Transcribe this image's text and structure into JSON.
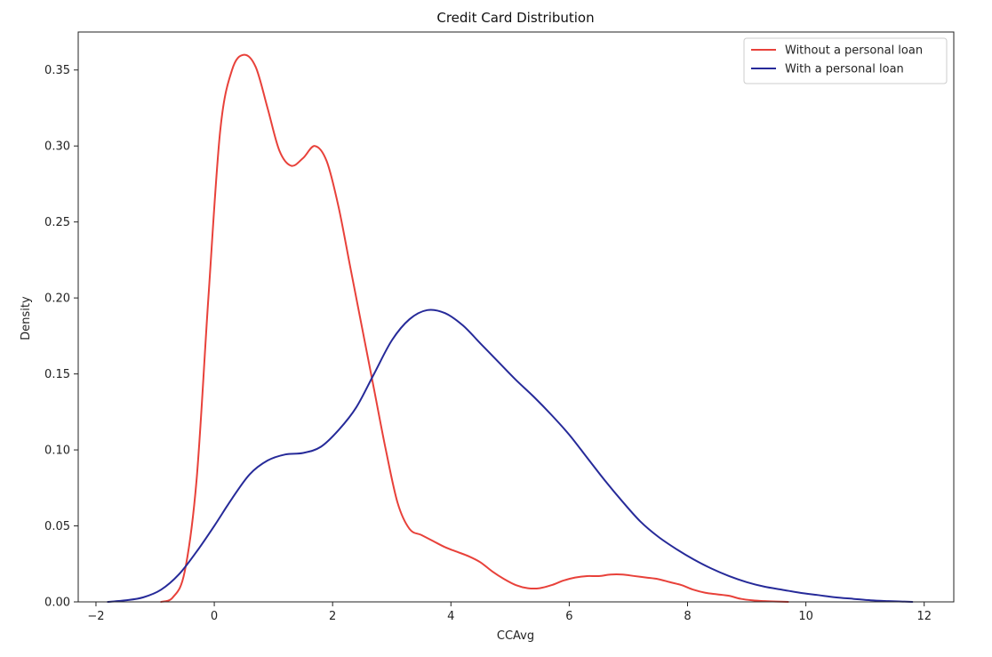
{
  "chart_data": {
    "type": "line",
    "title": "Credit Card Distribution",
    "xlabel": "CCAvg",
    "ylabel": "Density",
    "xlim": [
      -2.3,
      12.5
    ],
    "ylim": [
      0,
      0.375
    ],
    "xticks": [
      -2,
      0,
      2,
      4,
      6,
      8,
      10,
      12
    ],
    "xtick_labels": [
      "−2",
      "0",
      "2",
      "4",
      "6",
      "8",
      "10",
      "12"
    ],
    "yticks": [
      0,
      0.05,
      0.1,
      0.15,
      0.2,
      0.25,
      0.3,
      0.35
    ],
    "ytick_labels": [
      "0.00",
      "0.05",
      "0.10",
      "0.15",
      "0.20",
      "0.25",
      "0.30",
      "0.35"
    ],
    "grid": false,
    "legend_position": "top-right",
    "series": [
      {
        "name": "Without a personal loan",
        "color": "#e8413a",
        "x": [
          -0.9,
          -0.7,
          -0.5,
          -0.3,
          -0.1,
          0.1,
          0.3,
          0.5,
          0.7,
          0.9,
          1.1,
          1.3,
          1.5,
          1.7,
          1.9,
          2.1,
          2.3,
          2.5,
          2.7,
          2.9,
          3.1,
          3.3,
          3.5,
          3.7,
          3.9,
          4.1,
          4.3,
          4.5,
          4.7,
          4.9,
          5.1,
          5.3,
          5.5,
          5.7,
          5.9,
          6.1,
          6.3,
          6.5,
          6.7,
          6.9,
          7.1,
          7.3,
          7.5,
          7.7,
          7.9,
          8.1,
          8.3,
          8.5,
          8.7,
          8.9,
          9.1,
          9.3,
          9.5,
          9.7
        ],
        "y": [
          0.0,
          0.003,
          0.02,
          0.08,
          0.2,
          0.31,
          0.35,
          0.36,
          0.352,
          0.325,
          0.297,
          0.287,
          0.292,
          0.3,
          0.29,
          0.26,
          0.22,
          0.18,
          0.14,
          0.1,
          0.065,
          0.048,
          0.044,
          0.04,
          0.036,
          0.033,
          0.03,
          0.026,
          0.02,
          0.015,
          0.011,
          0.009,
          0.009,
          0.011,
          0.014,
          0.016,
          0.017,
          0.017,
          0.018,
          0.018,
          0.017,
          0.016,
          0.015,
          0.013,
          0.011,
          0.008,
          0.006,
          0.005,
          0.004,
          0.002,
          0.001,
          0.0005,
          0.0002,
          0.0
        ]
      },
      {
        "name": "With a personal loan",
        "color": "#262a99",
        "x": [
          -1.8,
          -1.5,
          -1.2,
          -0.9,
          -0.6,
          -0.3,
          0.0,
          0.3,
          0.6,
          0.9,
          1.2,
          1.5,
          1.8,
          2.1,
          2.4,
          2.7,
          3.0,
          3.3,
          3.6,
          3.9,
          4.2,
          4.5,
          4.8,
          5.1,
          5.4,
          5.7,
          6.0,
          6.3,
          6.6,
          6.9,
          7.2,
          7.5,
          7.8,
          8.1,
          8.4,
          8.7,
          9.0,
          9.3,
          9.6,
          9.9,
          10.2,
          10.5,
          10.8,
          11.1,
          11.4,
          11.8
        ],
        "y": [
          0.0,
          0.001,
          0.003,
          0.008,
          0.018,
          0.033,
          0.05,
          0.068,
          0.084,
          0.093,
          0.097,
          0.098,
          0.102,
          0.113,
          0.128,
          0.15,
          0.172,
          0.186,
          0.192,
          0.19,
          0.182,
          0.17,
          0.158,
          0.146,
          0.135,
          0.123,
          0.11,
          0.095,
          0.08,
          0.066,
          0.053,
          0.043,
          0.035,
          0.028,
          0.022,
          0.017,
          0.013,
          0.01,
          0.008,
          0.006,
          0.0045,
          0.003,
          0.002,
          0.001,
          0.0005,
          0.0
        ]
      }
    ]
  }
}
